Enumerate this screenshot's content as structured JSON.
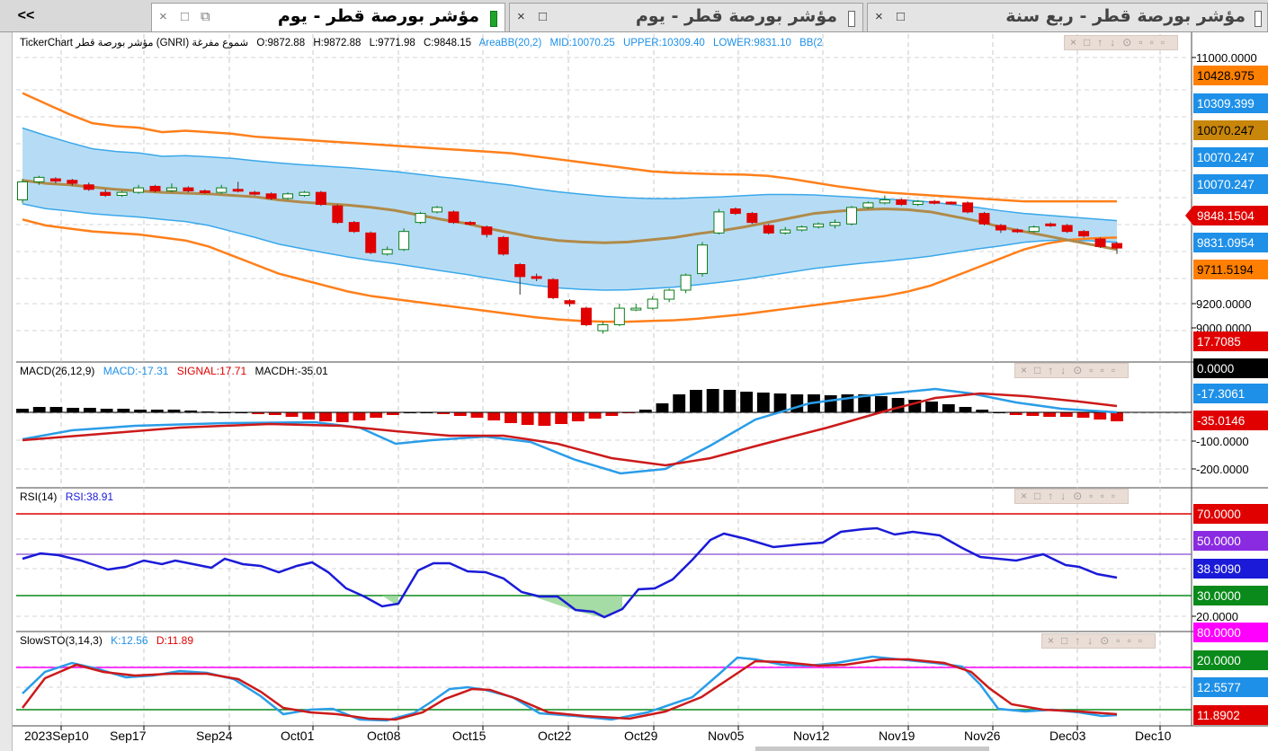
{
  "tabs": {
    "collapse_label": "<<",
    "items": [
      {
        "title": "مؤشر بورصة قطر - يوم",
        "active": true
      },
      {
        "title": "مؤشر بورصة قطر - يوم",
        "active": false
      },
      {
        "title": "مؤشر بورصة قطر - ربع سنة",
        "active": false
      }
    ],
    "close_glyph": "×",
    "restore_glyph": "□",
    "detach_glyph": "⧉"
  },
  "main_legend": {
    "instrument": "TickerChart مؤشر بورصة قطر (GNRI)  شموع مفرغة",
    "open": "O:9872.88",
    "high": "H:9872.88",
    "low": "L:9771.98",
    "close": "C:9848.15",
    "indicator": "AreaBB(20,2)",
    "mid": "MID:10070.25",
    "upper": "UPPER:10309.40",
    "lower": "LOWER:9831.10",
    "bb2": "BB(2"
  },
  "macd_legend": {
    "name": "MACD(26,12,9)",
    "macd": "MACD:-17.31",
    "signal": "SIGNAL:17.71",
    "hist": "MACDH:-35.01"
  },
  "rsi_legend": {
    "name": "RSI(14)",
    "value": "RSI:38.91"
  },
  "sto_legend": {
    "name": "SlowSTO(3,14,3)",
    "k": "K:12.56",
    "d": "D:11.89"
  },
  "panel_controls": "×□↑↓⊙▫▫▫",
  "price_axis": {
    "ticks": [
      "11000.0000",
      "9200.0000",
      "9000.0000"
    ],
    "tags": [
      {
        "label": "10428.975",
        "color": "#ff7f00",
        "text": "#000"
      },
      {
        "label": "10309.399",
        "color": "#1e90e8",
        "text": "#fff"
      },
      {
        "label": "10070.247",
        "color": "#c8860a",
        "text": "#000"
      },
      {
        "label": "10070.247",
        "color": "#1e90e8",
        "text": "#fff"
      },
      {
        "label": "10070.247",
        "color": "#1e90e8",
        "text": "#fff"
      },
      {
        "label": "9848.1504",
        "color": "#e00000",
        "text": "#fff"
      },
      {
        "label": "9831.0954",
        "color": "#1e90e8",
        "text": "#fff"
      },
      {
        "label": "9711.5194",
        "color": "#ff7f00",
        "text": "#000"
      },
      {
        "label": "17.7085",
        "color": "#e00000",
        "text": "#fff"
      }
    ]
  },
  "macd_axis": {
    "ticks": [
      "-100.0000",
      "-200.0000"
    ],
    "tags": [
      {
        "label": "0.0000",
        "color": "#000000",
        "text": "#fff"
      },
      {
        "label": "-17.3061",
        "color": "#1e90e8",
        "text": "#fff"
      },
      {
        "label": "-35.0146",
        "color": "#e00000",
        "text": "#fff"
      }
    ]
  },
  "rsi_axis": {
    "ticks": [
      "20.0000"
    ],
    "tags": [
      {
        "label": "70.0000",
        "color": "#e00000",
        "text": "#fff"
      },
      {
        "label": "50.0000",
        "color": "#8a2be2",
        "text": "#fff"
      },
      {
        "label": "38.9090",
        "color": "#1a1ad8",
        "text": "#fff"
      },
      {
        "label": "30.0000",
        "color": "#0a8a1a",
        "text": "#fff"
      }
    ]
  },
  "sto_axis": {
    "tags": [
      {
        "label": "80.0000",
        "color": "#ff00ff",
        "text": "#fff"
      },
      {
        "label": "20.0000",
        "color": "#0a8a1a",
        "text": "#fff"
      },
      {
        "label": "12.5577",
        "color": "#1e90e8",
        "text": "#fff"
      },
      {
        "label": "11.8902",
        "color": "#e00000",
        "text": "#fff"
      }
    ]
  },
  "date_axis": [
    "2023Sep10",
    "Sep17",
    "Sep24",
    "Oct01",
    "Oct08",
    "Oct15",
    "Oct22",
    "Oct29",
    "Nov05",
    "Nov12",
    "Nov19",
    "Nov26",
    "Dec03",
    "Dec10"
  ],
  "chart_data": [
    {
      "type": "line",
      "title": "",
      "ylim": [
        8950,
        11100
      ],
      "candles": [
        {
          "o": 10010,
          "c": 10130,
          "h": 10150,
          "l": 9990
        },
        {
          "o": 10130,
          "c": 10160,
          "h": 10170,
          "l": 10110
        },
        {
          "o": 10150,
          "c": 10135,
          "h": 10160,
          "l": 10120
        },
        {
          "o": 10140,
          "c": 10120,
          "h": 10150,
          "l": 10105
        },
        {
          "o": 10110,
          "c": 10080,
          "h": 10125,
          "l": 10070
        },
        {
          "o": 10060,
          "c": 10040,
          "h": 10080,
          "l": 10030
        },
        {
          "o": 10040,
          "c": 10060,
          "h": 10070,
          "l": 10030
        },
        {
          "o": 10060,
          "c": 10090,
          "h": 10110,
          "l": 10050
        },
        {
          "o": 10100,
          "c": 10070,
          "h": 10110,
          "l": 10060
        },
        {
          "o": 10070,
          "c": 10090,
          "h": 10120,
          "l": 10060
        },
        {
          "o": 10090,
          "c": 10070,
          "h": 10100,
          "l": 10060
        },
        {
          "o": 10070,
          "c": 10060,
          "h": 10080,
          "l": 10050
        },
        {
          "o": 10060,
          "c": 10090,
          "h": 10110,
          "l": 10050
        },
        {
          "o": 10080,
          "c": 10070,
          "h": 10130,
          "l": 10060
        },
        {
          "o": 10060,
          "c": 10050,
          "h": 10070,
          "l": 10040
        },
        {
          "o": 10050,
          "c": 10020,
          "h": 10060,
          "l": 10010
        },
        {
          "o": 10020,
          "c": 10050,
          "h": 10060,
          "l": 10010
        },
        {
          "o": 10040,
          "c": 10060,
          "h": 10070,
          "l": 10030
        },
        {
          "o": 10060,
          "c": 9980,
          "h": 10070,
          "l": 9970
        },
        {
          "o": 9970,
          "c": 9860,
          "h": 9980,
          "l": 9850
        },
        {
          "o": 9860,
          "c": 9800,
          "h": 9870,
          "l": 9790
        },
        {
          "o": 9790,
          "c": 9660,
          "h": 9800,
          "l": 9650
        },
        {
          "o": 9650,
          "c": 9680,
          "h": 9700,
          "l": 9640
        },
        {
          "o": 9680,
          "c": 9800,
          "h": 9820,
          "l": 9670
        },
        {
          "o": 9860,
          "c": 9920,
          "h": 9930,
          "l": 9850
        },
        {
          "o": 9930,
          "c": 9960,
          "h": 9970,
          "l": 9920
        },
        {
          "o": 9930,
          "c": 9860,
          "h": 9940,
          "l": 9850
        },
        {
          "o": 9860,
          "c": 9850,
          "h": 9870,
          "l": 9840
        },
        {
          "o": 9830,
          "c": 9780,
          "h": 9840,
          "l": 9760
        },
        {
          "o": 9760,
          "c": 9650,
          "h": 9770,
          "l": 9640
        },
        {
          "o": 9580,
          "c": 9500,
          "h": 9590,
          "l": 9380
        },
        {
          "o": 9500,
          "c": 9490,
          "h": 9520,
          "l": 9470
        },
        {
          "o": 9480,
          "c": 9360,
          "h": 9490,
          "l": 9350
        },
        {
          "o": 9340,
          "c": 9320,
          "h": 9350,
          "l": 9300
        },
        {
          "o": 9290,
          "c": 9180,
          "h": 9300,
          "l": 9170
        },
        {
          "o": 9140,
          "c": 9180,
          "h": 9200,
          "l": 9120
        },
        {
          "o": 9180,
          "c": 9290,
          "h": 9320,
          "l": 9170
        },
        {
          "o": 9280,
          "c": 9290,
          "h": 9320,
          "l": 9270
        },
        {
          "o": 9290,
          "c": 9350,
          "h": 9370,
          "l": 9280
        },
        {
          "o": 9350,
          "c": 9410,
          "h": 9420,
          "l": 9330
        },
        {
          "o": 9410,
          "c": 9510,
          "h": 9520,
          "l": 9390
        },
        {
          "o": 9520,
          "c": 9710,
          "h": 9730,
          "l": 9500
        },
        {
          "o": 9790,
          "c": 9930,
          "h": 9950,
          "l": 9780
        },
        {
          "o": 9950,
          "c": 9920,
          "h": 9960,
          "l": 9910
        },
        {
          "o": 9920,
          "c": 9860,
          "h": 9930,
          "l": 9850
        },
        {
          "o": 9840,
          "c": 9790,
          "h": 9850,
          "l": 9780
        },
        {
          "o": 9790,
          "c": 9810,
          "h": 9830,
          "l": 9780
        },
        {
          "o": 9810,
          "c": 9830,
          "h": 9840,
          "l": 9800
        },
        {
          "o": 9830,
          "c": 9850,
          "h": 9860,
          "l": 9820
        },
        {
          "o": 9840,
          "c": 9860,
          "h": 9880,
          "l": 9820
        },
        {
          "o": 9850,
          "c": 9960,
          "h": 9970,
          "l": 9840
        },
        {
          "o": 9960,
          "c": 9990,
          "h": 10000,
          "l": 9950
        },
        {
          "o": 9990,
          "c": 10010,
          "h": 10040,
          "l": 9980
        },
        {
          "o": 10010,
          "c": 9980,
          "h": 10020,
          "l": 9970
        },
        {
          "o": 9980,
          "c": 10000,
          "h": 10010,
          "l": 9970
        },
        {
          "o": 10000,
          "c": 9990,
          "h": 10010,
          "l": 9980
        },
        {
          "o": 9995,
          "c": 9990,
          "h": 10000,
          "l": 9980
        },
        {
          "o": 9990,
          "c": 9930,
          "h": 10000,
          "l": 9920
        },
        {
          "o": 9920,
          "c": 9850,
          "h": 9930,
          "l": 9840
        },
        {
          "o": 9840,
          "c": 9810,
          "h": 9850,
          "l": 9790
        },
        {
          "o": 9810,
          "c": 9800,
          "h": 9820,
          "l": 9790
        },
        {
          "o": 9800,
          "c": 9830,
          "h": 9840,
          "l": 9790
        },
        {
          "o": 9850,
          "c": 9840,
          "h": 9860,
          "l": 9830
        },
        {
          "o": 9840,
          "c": 9800,
          "h": 9850,
          "l": 9790
        },
        {
          "o": 9800,
          "c": 9770,
          "h": 9810,
          "l": 9760
        },
        {
          "o": 9750,
          "c": 9700,
          "h": 9760,
          "l": 9690
        },
        {
          "o": 9720,
          "c": 9690,
          "h": 9730,
          "l": 9650
        }
      ],
      "mid": [
        10140,
        10120,
        10110,
        10095,
        10080,
        10070,
        10060,
        10055,
        10050,
        10040,
        10030,
        10010,
        9995,
        9985,
        9975,
        9960,
        9940,
        9910,
        9880,
        9855,
        9820,
        9790,
        9760,
        9740,
        9730,
        9725,
        9730,
        9745,
        9760,
        9785,
        9805,
        9830,
        9860,
        9890,
        9920,
        9935,
        9945,
        9950,
        9945,
        9930,
        9900,
        9870,
        9830,
        9800,
        9770,
        9740,
        9710,
        9680
      ],
      "upper": [
        10720,
        10650,
        10580,
        10520,
        10500,
        10490,
        10460,
        10470,
        10460,
        10450,
        10430,
        10420,
        10410,
        10400,
        10390,
        10380,
        10370,
        10360,
        10350,
        10340,
        10330,
        10320,
        10300,
        10280,
        10260,
        10240,
        10220,
        10200,
        10190,
        10185,
        10180,
        10178,
        10170,
        10150,
        10125,
        10100,
        10080,
        10060,
        10050,
        10040,
        10030,
        10020,
        10010,
        10000,
        10000,
        10000,
        10000,
        10000
      ],
      "lower": [
        9880,
        9840,
        9820,
        9800,
        9790,
        9780,
        9760,
        9740,
        9700,
        9640,
        9580,
        9520,
        9480,
        9440,
        9400,
        9370,
        9350,
        9330,
        9310,
        9290,
        9270,
        9250,
        9230,
        9215,
        9205,
        9200,
        9200,
        9205,
        9210,
        9220,
        9235,
        9250,
        9270,
        9290,
        9310,
        9330,
        9350,
        9370,
        9400,
        9440,
        9500,
        9560,
        9620,
        9680,
        9720,
        9745,
        9755,
        9760
      ]
    }
  ]
}
